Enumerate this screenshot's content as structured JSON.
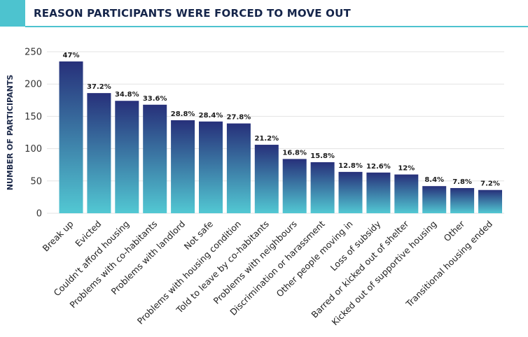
{
  "header": {
    "title": "REASON PARTICIPANTS WERE FORCED TO MOVE OUT",
    "accent_color": "#4dc3cf"
  },
  "chart_data": {
    "type": "bar",
    "title": "REASON PARTICIPANTS WERE FORCED TO MOVE OUT",
    "xlabel": "",
    "ylabel": "NUMBER OF PARTICIPANTS",
    "ylim": [
      0,
      250
    ],
    "yticks": [
      0,
      50,
      100,
      150,
      200,
      250
    ],
    "grid": true,
    "categories": [
      "Break up",
      "Evicted",
      "Couldn't afford housing",
      "Problems with co-habitants",
      "Problems with landlord",
      "Not safe",
      "Problems with housing condition",
      "Told to leave by co-habitants",
      "Problems with neighbours",
      "Discrimination or harassment",
      "Other people moving in",
      "Loss of subsidy",
      "Barred or kicked out of shelter",
      "Kicked out of supportive housing",
      "Other",
      "Transitional housing ended"
    ],
    "values": [
      235,
      186,
      174,
      168,
      144,
      142,
      139,
      106,
      84,
      79,
      64,
      63,
      60,
      42,
      39,
      36
    ],
    "data_labels": [
      "47%",
      "37.2%",
      "34.8%",
      "33.6%",
      "28.8%",
      "28.4%",
      "27.8%",
      "21.2%",
      "16.8%",
      "15.8%",
      "12.8%",
      "12.6%",
      "12%",
      "8.4%",
      "7.8%",
      "7.2%"
    ],
    "colors": {
      "gradient_top": "#27307a",
      "gradient_bottom": "#52c8d3",
      "grid": "#e3e3e3"
    }
  }
}
